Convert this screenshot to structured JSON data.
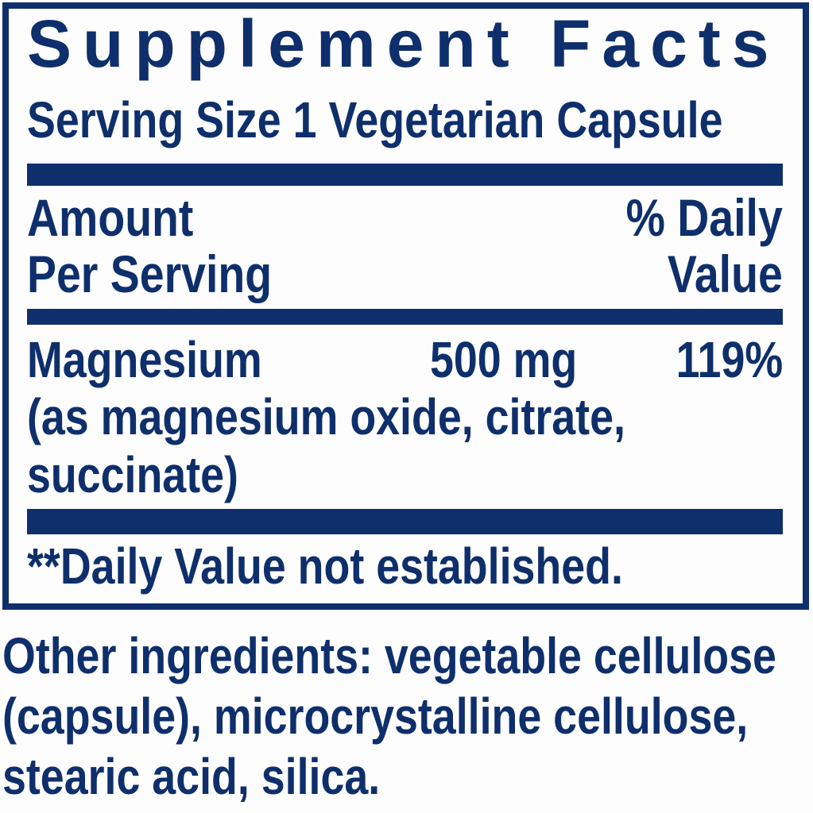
{
  "colors": {
    "navy": "#0e2f6b",
    "background": "#fdfdfd"
  },
  "panel": {
    "title": "Supplement Facts",
    "serving_size": "Serving Size 1 Vegetarian Capsule",
    "column_headers": {
      "amount_line1": "Amount",
      "amount_line2": "Per Serving",
      "daily_value_line1": "% Daily",
      "daily_value_line2": "Value"
    },
    "nutrients": [
      {
        "name": "Magnesium",
        "amount": "500 mg",
        "daily_value": "119%",
        "detail_lines": [
          "(as magnesium oxide, citrate,",
          "succinate)"
        ]
      }
    ],
    "footnote": "**Daily Value not established."
  },
  "other_ingredients": {
    "lines": [
      "Other ingredients: vegetable cellulose",
      "(capsule), microcrystalline cellulose,",
      "stearic acid, silica."
    ]
  }
}
